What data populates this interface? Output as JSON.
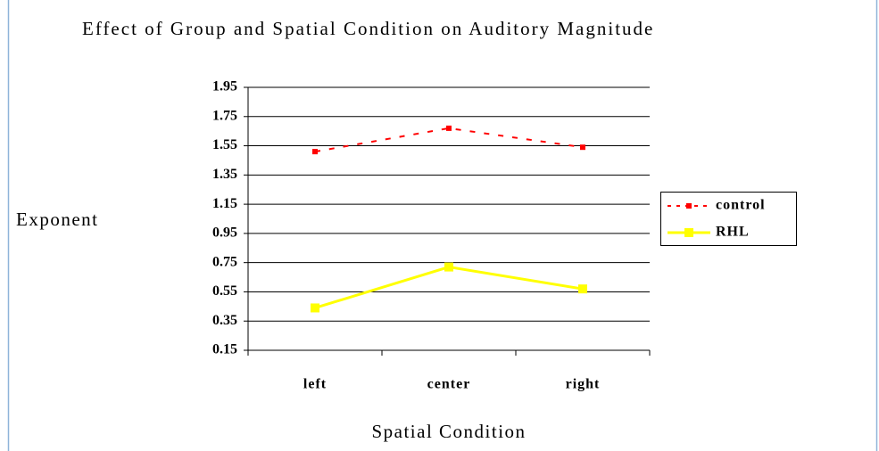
{
  "chart_data": {
    "type": "line",
    "title": "Effect of Group and Spatial Condition on Auditory Magnitude",
    "x_label": "Spatial Condition",
    "y_label": "Exponent",
    "categories": [
      "left",
      "center",
      "right"
    ],
    "series": [
      {
        "name": "control",
        "color": "#ff0000",
        "values": [
          1.51,
          1.67,
          1.54
        ]
      },
      {
        "name": "RHL",
        "color": "#ffff00",
        "values": [
          0.44,
          0.72,
          0.57
        ]
      }
    ],
    "ylim": [
      0.15,
      1.95
    ],
    "yticks": [
      0.15,
      0.35,
      0.55,
      0.75,
      0.95,
      1.15,
      1.35,
      1.55,
      1.75,
      1.95
    ],
    "grid": true
  }
}
